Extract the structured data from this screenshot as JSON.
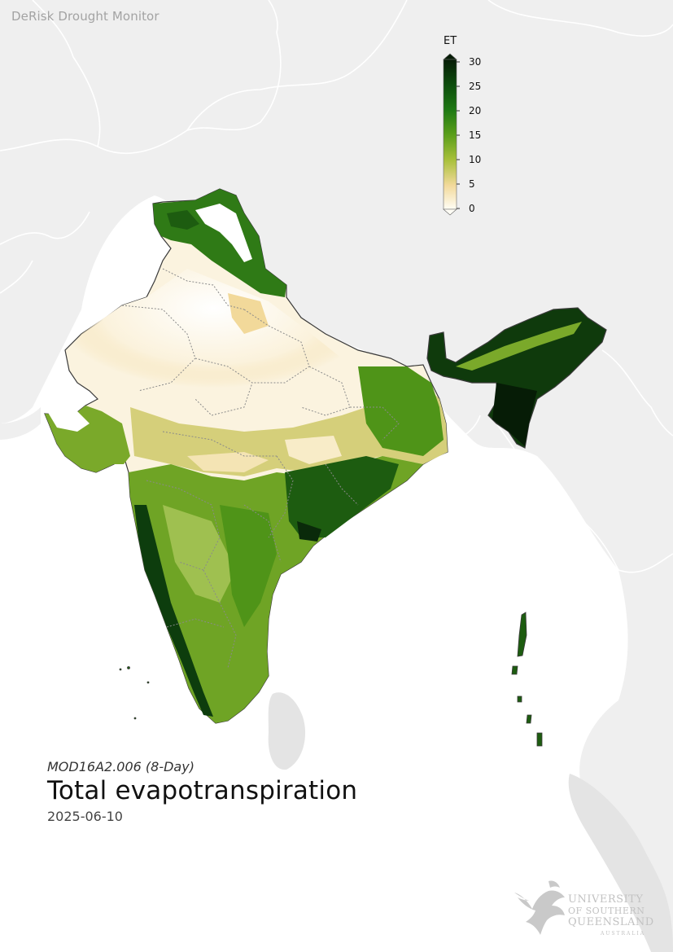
{
  "app": {
    "title": "DeRisk Drought Monitor"
  },
  "map": {
    "region": "India",
    "background_land_color": "#efefef",
    "sea_color": "#ffffff",
    "boundary_color": "#ffffff",
    "country_outline_color": "#3a3a3a",
    "state_boundary_color": "#8a8a8a"
  },
  "legend": {
    "title": "ET",
    "ticks": [
      "30",
      "25",
      "20",
      "15",
      "10",
      "5",
      "0"
    ],
    "colors": [
      "#0a2a0a",
      "#0d4d0d",
      "#1f7a14",
      "#5a9e1a",
      "#94b81f",
      "#e8d890",
      "#fffdf5"
    ]
  },
  "caption": {
    "product": "MOD16A2.006 (8-Day)",
    "title": "Total evapotranspiration",
    "date": "2025-06-10"
  },
  "logo": {
    "line1": "UNIVERSITY",
    "line2": "OF SOUTHERN",
    "line3": "QUEENSLAND",
    "line4": "AUSTRALIA"
  }
}
